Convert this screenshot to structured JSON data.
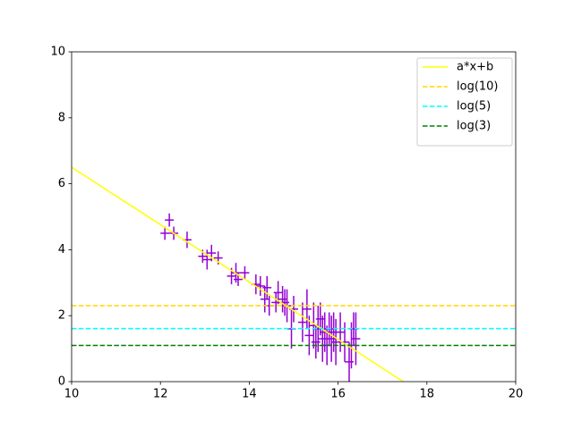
{
  "chart_data": {
    "type": "errorbar",
    "xlim": [
      10,
      20
    ],
    "ylim": [
      0,
      10
    ],
    "xticks": [
      10,
      12,
      14,
      16,
      18,
      20
    ],
    "yticks": [
      0,
      2,
      4,
      6,
      8,
      10
    ],
    "legend": "upper right",
    "series": [
      {
        "type": "errorbar",
        "color": "#9400d3",
        "x": [
          12.1,
          12.2,
          12.3,
          12.6,
          12.95,
          13.05,
          13.15,
          13.3,
          13.6,
          13.7,
          13.75,
          13.9,
          14.15,
          14.25,
          14.35,
          14.4,
          14.45,
          14.6,
          14.65,
          14.75,
          14.8,
          14.85,
          14.95,
          15.0,
          15.2,
          15.3,
          15.35,
          15.45,
          15.5,
          15.55,
          15.6,
          15.65,
          15.7,
          15.75,
          15.8,
          15.85,
          15.9,
          15.95,
          16.05,
          16.15,
          16.25,
          16.3,
          16.35,
          16.4
        ],
        "values": [
          4.5,
          4.9,
          4.5,
          4.3,
          3.8,
          3.7,
          3.9,
          3.75,
          3.2,
          3.3,
          3.1,
          3.3,
          2.95,
          2.9,
          2.5,
          2.85,
          2.3,
          2.4,
          2.7,
          2.5,
          2.4,
          2.3,
          1.6,
          2.2,
          1.8,
          2.2,
          1.4,
          1.7,
          1.2,
          1.6,
          1.9,
          1.3,
          1.5,
          1.1,
          1.6,
          1.3,
          1.5,
          1.2,
          1.5,
          1.2,
          0.6,
          1.1,
          1.6,
          1.3
        ],
        "xerr": [
          0.1,
          0.1,
          0.1,
          0.1,
          0.1,
          0.1,
          0.1,
          0.1,
          0.1,
          0.1,
          0.1,
          0.1,
          0.1,
          0.1,
          0.1,
          0.1,
          0.1,
          0.1,
          0.1,
          0.1,
          0.1,
          0.1,
          0.1,
          0.1,
          0.1,
          0.1,
          0.1,
          0.1,
          0.1,
          0.1,
          0.1,
          0.1,
          0.1,
          0.1,
          0.1,
          0.1,
          0.1,
          0.1,
          0.1,
          0.1,
          0.1,
          0.1,
          0.1,
          0.1
        ],
        "yerr": [
          0.2,
          0.2,
          0.2,
          0.25,
          0.2,
          0.3,
          0.25,
          0.2,
          0.25,
          0.3,
          0.2,
          0.2,
          0.3,
          0.3,
          0.4,
          0.35,
          0.3,
          0.3,
          0.35,
          0.4,
          0.4,
          0.5,
          0.6,
          0.4,
          0.6,
          0.6,
          0.6,
          0.7,
          0.5,
          0.7,
          0.5,
          0.7,
          0.6,
          0.6,
          0.5,
          0.7,
          0.6,
          0.7,
          0.6,
          0.6,
          0.6,
          0.7,
          0.5,
          0.8
        ]
      },
      {
        "type": "line",
        "name": "a*x+b",
        "color": "#ffff00",
        "linestyle": "solid",
        "x": [
          10,
          17.47
        ],
        "values": [
          6.5,
          0
        ]
      },
      {
        "type": "line",
        "name": "log(10)",
        "color": "#ffd700",
        "linestyle": "dashed",
        "x": [
          10,
          20
        ],
        "values": [
          2.303,
          2.303
        ]
      },
      {
        "type": "line",
        "name": "log(5)",
        "color": "#00ffff",
        "linestyle": "dashed",
        "x": [
          10,
          20
        ],
        "values": [
          1.609,
          1.609
        ]
      },
      {
        "type": "line",
        "name": "log(3)",
        "color": "#008000",
        "linestyle": "dashed",
        "x": [
          10,
          20
        ],
        "values": [
          1.099,
          1.099
        ]
      }
    ]
  }
}
